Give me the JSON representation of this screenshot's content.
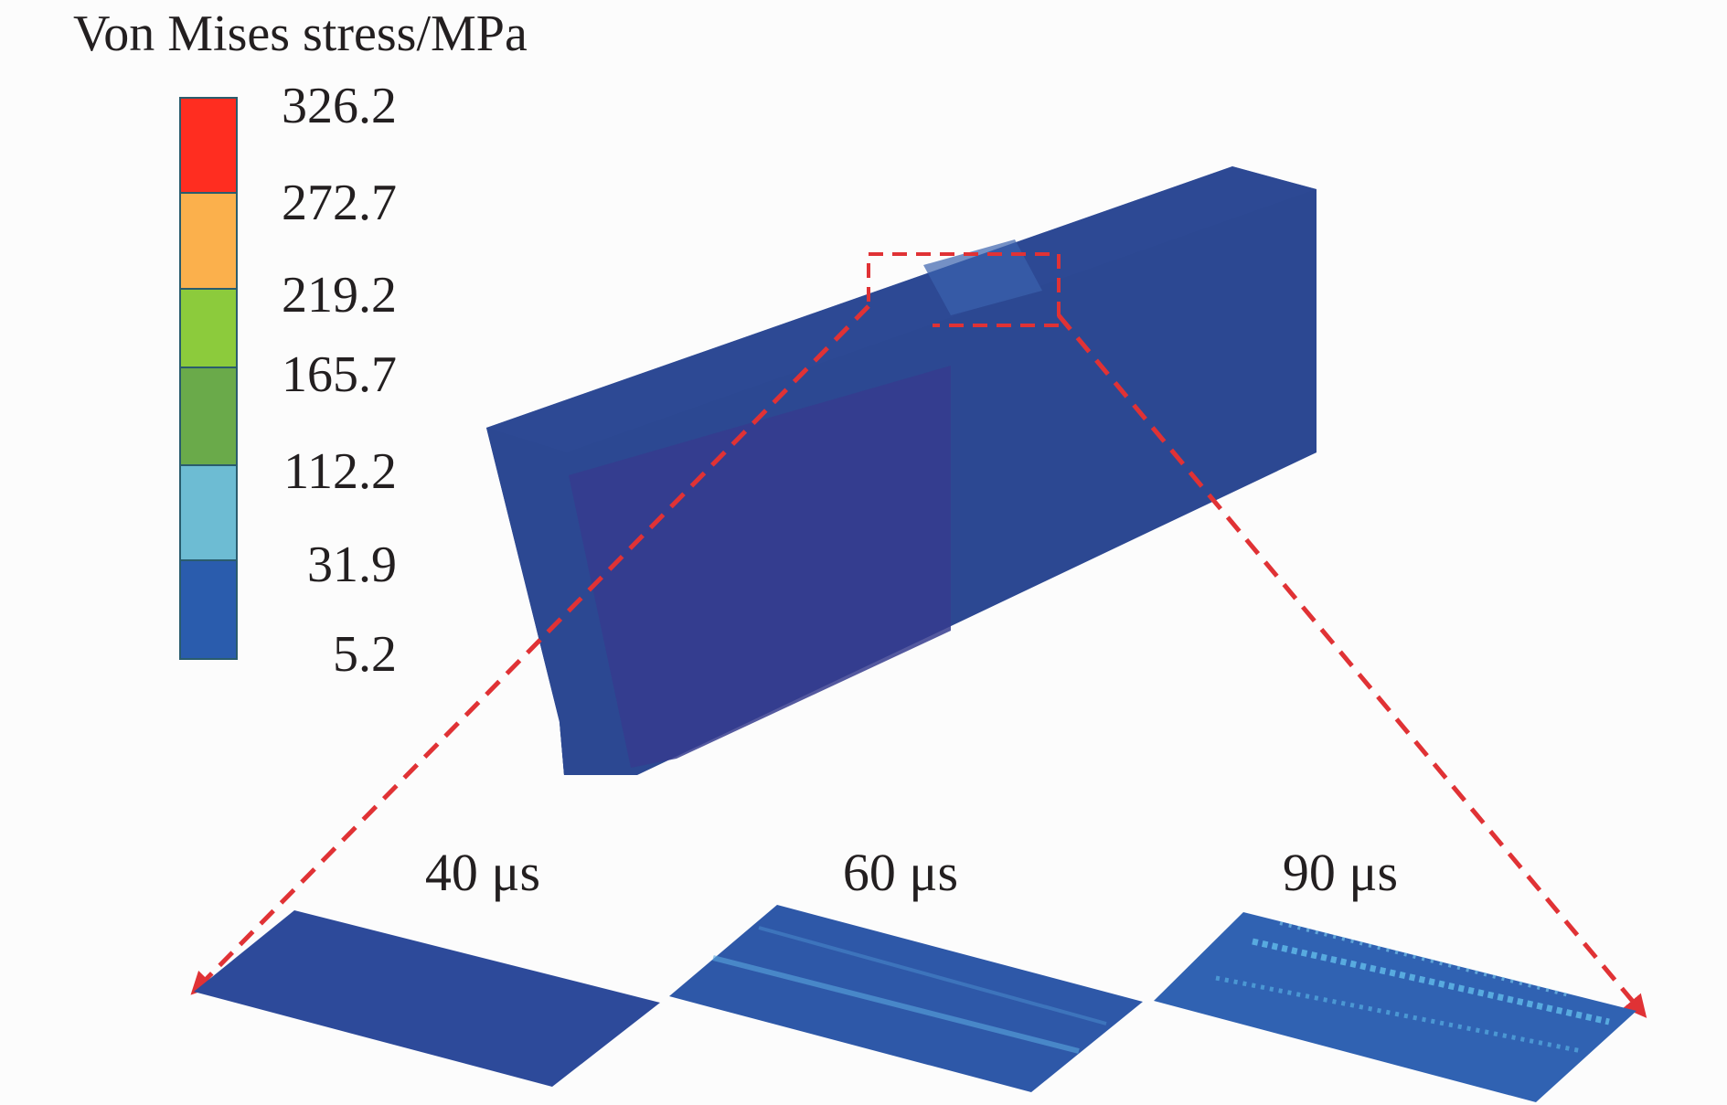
{
  "legend": {
    "title": "Von Mises stress/MPa",
    "unit": "MPa",
    "ticks": [
      "326.2",
      "272.7",
      "219.2",
      "165.7",
      "112.2",
      "31.9",
      "5.2"
    ],
    "bands": [
      {
        "color": "#ff2d20"
      },
      {
        "color": "#fbb04c"
      },
      {
        "color": "#8ccb3c"
      },
      {
        "color": "#6aaa4a"
      },
      {
        "color": "#6dbcd3"
      },
      {
        "color": "#2a5cad"
      }
    ]
  },
  "block": {
    "base_color": "#2b4490",
    "front_color": "#313f8f",
    "side_color": "#2c4a92",
    "top_color": "#2f4b96"
  },
  "zoom_lines": {
    "color": "#e03235"
  },
  "snapshots": [
    {
      "label": "40 μs",
      "color": "#2d4a9a"
    },
    {
      "label": "60 μs",
      "color": "#2e58a8"
    },
    {
      "label": "90 μs",
      "color": "#3062b2"
    }
  ]
}
